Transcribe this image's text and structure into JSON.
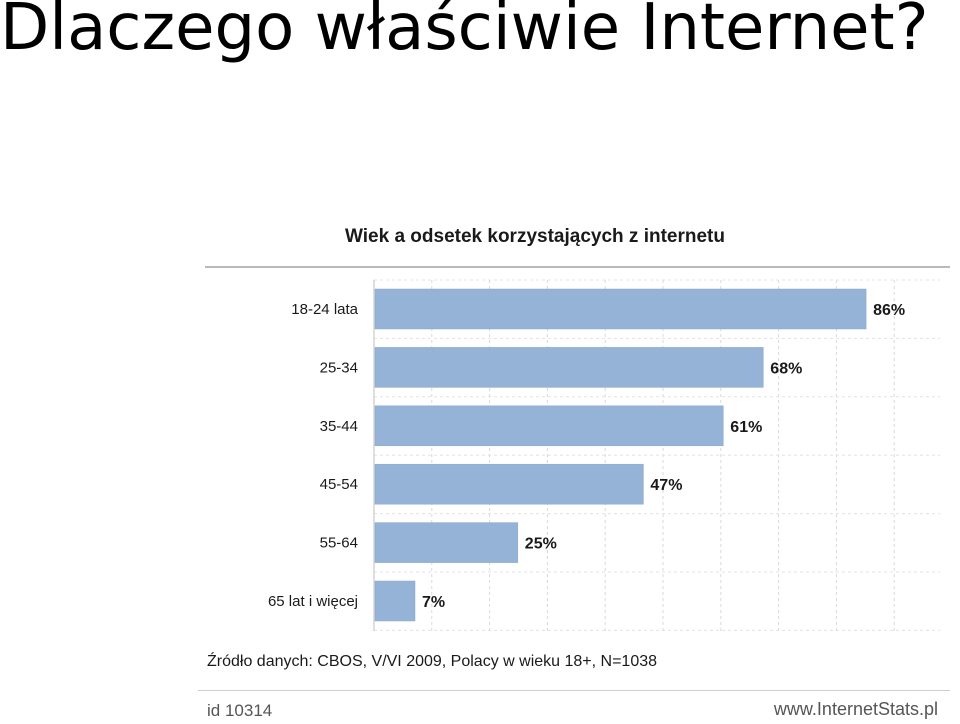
{
  "slide": {
    "title": "Dlaczego właściwie Internet?"
  },
  "chart_data": {
    "type": "bar",
    "orientation": "horizontal",
    "title": "Wiek a odsetek korzystających z internetu",
    "categories": [
      "18-24 lata",
      "25-34",
      "35-44",
      "45-54",
      "55-64",
      "65 lat i więcej"
    ],
    "values": [
      86,
      68,
      61,
      47,
      25,
      7
    ],
    "value_labels": [
      "86%",
      "68%",
      "61%",
      "47%",
      "25%",
      "7%"
    ],
    "xlim": [
      0,
      100
    ],
    "grid": true,
    "bar_color": "#95b3d7",
    "source": "Źródło danych: CBOS, V/VI 2009, Polacy w wieku 18+, N=1038",
    "chart_id": "id 10314",
    "site": "www.InternetStats.pl"
  }
}
